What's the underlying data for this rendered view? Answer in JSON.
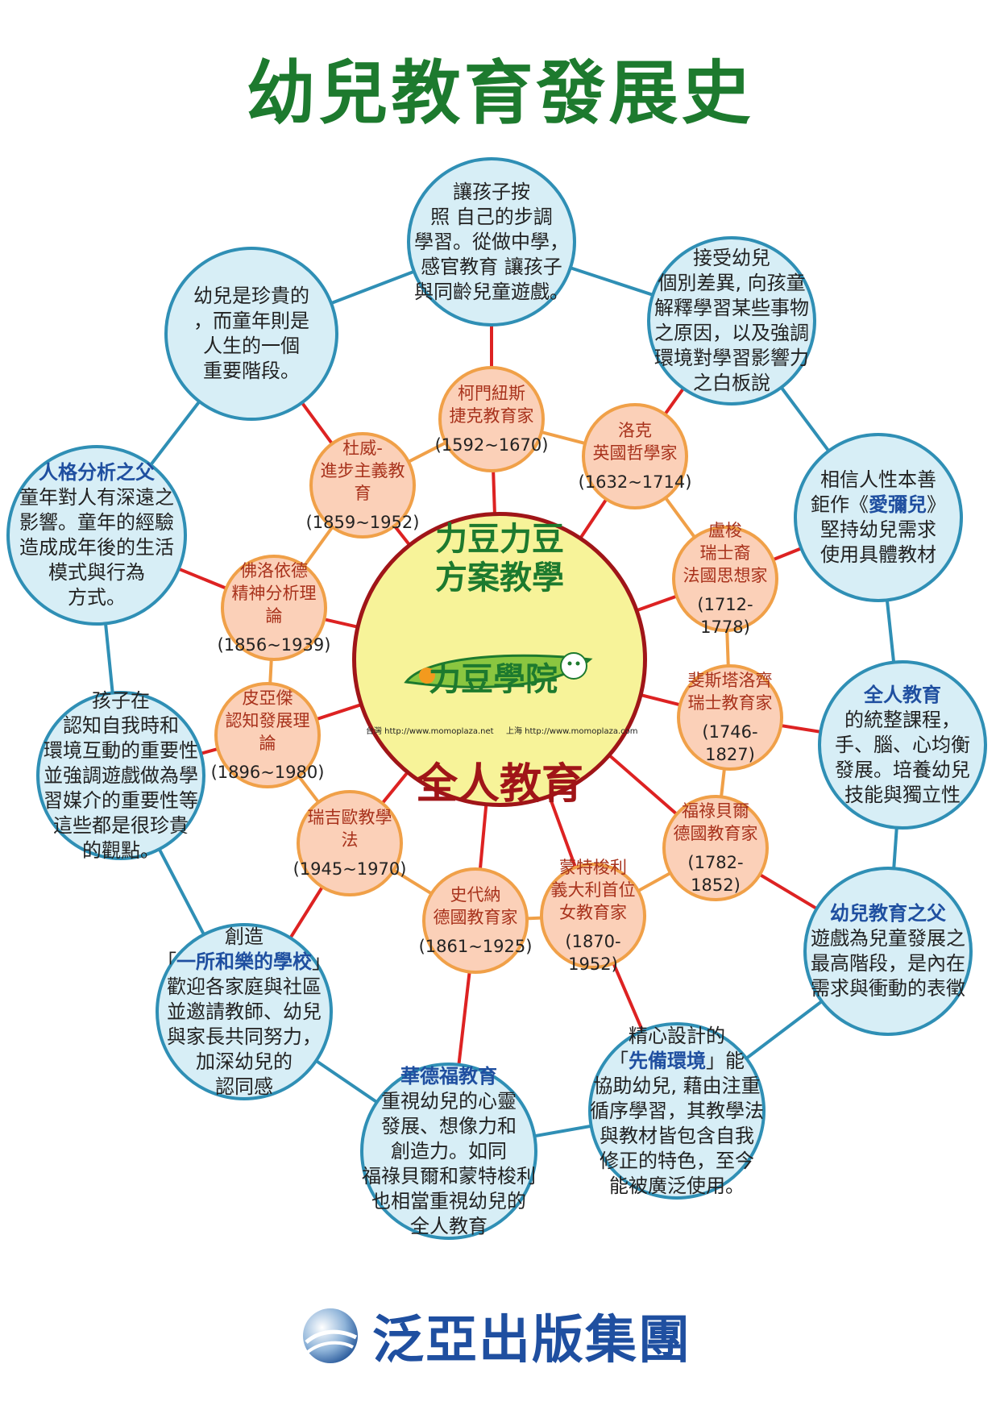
{
  "title": "幼兒教育發展史",
  "colors": {
    "title_green": "#1d7a2e",
    "outer_ring": "#2f8fb5",
    "inner_ring": "#f0a048",
    "spoke_red": "#dd2222",
    "heading_blue": "#1f4fa0"
  },
  "center": {
    "line1": "力豆力豆",
    "line2": "方案教學",
    "brand": "力豆學院",
    "url_taiwan": "台灣 http://www.momoplaza.net",
    "url_shanghai": "上海 http://www.momoplaza.com",
    "theme": "全人教育"
  },
  "figures": [
    {
      "lines": [
        "柯門紐斯",
        "捷克教育家"
      ],
      "years": "(1592~1670)"
    },
    {
      "lines": [
        "洛克",
        "英國哲學家"
      ],
      "years": "(1632~1714)"
    },
    {
      "lines": [
        "盧梭",
        "瑞士裔",
        "法國思想家"
      ],
      "years": "(1712-1778)"
    },
    {
      "lines": [
        "斐斯塔洛齊",
        "瑞士教育家"
      ],
      "years": "(1746-1827)"
    },
    {
      "lines": [
        "福祿貝爾",
        "德國教育家"
      ],
      "years": "(1782-1852)"
    },
    {
      "lines": [
        "蒙特梭利",
        "義大利首位",
        "女教育家"
      ],
      "years": "(1870-1952)"
    },
    {
      "lines": [
        "史代納",
        "德國教育家"
      ],
      "years": "(1861~1925)"
    },
    {
      "lines": [
        "瑞吉歐教學法"
      ],
      "years": "(1945~1970)"
    },
    {
      "lines": [
        "皮亞傑",
        "認知發展理論"
      ],
      "years": "(1896~1980)"
    },
    {
      "lines": [
        "佛洛依德",
        "精神分析理論"
      ],
      "years": "(1856~1939)"
    },
    {
      "lines": [
        "杜威-",
        "進步主義教育"
      ],
      "years": "(1859~1952)"
    }
  ],
  "ideas": [
    {
      "heading": "",
      "lines": [
        "讓孩子按",
        "照  自己的步調",
        "學習。從做中學，",
        "感官教育  讓孩子",
        "與同齡兒童遊戲。"
      ]
    },
    {
      "heading": "",
      "lines": [
        "接受幼兒",
        "個別差異, 向孩童",
        "解釋學習某些事物",
        "之原因，以及強調",
        "環境對學習影響力",
        "之白板說"
      ]
    },
    {
      "heading": "",
      "lines": [
        "相信人性本善",
        "鉅作《愛彌兒》",
        "堅持幼兒需求",
        "使用具體教材"
      ],
      "highlight": "愛彌兒"
    },
    {
      "heading": "全人教育",
      "lines": [
        "的統整課程，",
        "手、腦、心均衡",
        "發展。培養幼兒",
        "技能與獨立性"
      ]
    },
    {
      "heading": "幼兒教育之父",
      "lines": [
        "遊戲為兒童發展之",
        "最高階段，是內在",
        "需求與衝動的表徵"
      ]
    },
    {
      "heading": "",
      "lines": [
        "精心設計的",
        "「先備環境」能",
        "協助幼兒, 藉由注重",
        "循序學習，其教學法",
        "與教材皆包含自我",
        "修正的特色，至今",
        "能被廣泛使用。"
      ],
      "highlight": "先備環境"
    },
    {
      "heading": "華德福教育",
      "lines": [
        "重視幼兒的心靈",
        "發展、想像力和",
        "創造力。如同",
        "福祿貝爾和蒙特梭利",
        "也相當重視幼兒的",
        "全人教育"
      ]
    },
    {
      "heading": "",
      "lines": [
        "創造",
        "「一所和樂的學校」",
        "歡迎各家庭與社區",
        "並邀請教師、幼兒",
        "與家長共同努力，",
        "加深幼兒的",
        "認同感"
      ],
      "highlight": "一所和樂的學校"
    },
    {
      "heading": "",
      "lines": [
        "孩子在",
        "認知自我時和",
        "環境互動的重要性",
        "並強調遊戲做為學",
        "習媒介的重要性等",
        "這些都是很珍貴",
        "的觀點。"
      ]
    },
    {
      "heading": "人格分析之父",
      "lines": [
        "童年對人有深遠之",
        "影響。童年的經驗",
        "造成成年後的生活",
        "模式與行為",
        "方式。"
      ]
    },
    {
      "heading": "",
      "lines": [
        "幼兒是珍貴的",
        "，而童年則是",
        "人生的一個",
        "重要階段。"
      ]
    }
  ],
  "footer": {
    "publisher": "泛亞出版集團"
  }
}
